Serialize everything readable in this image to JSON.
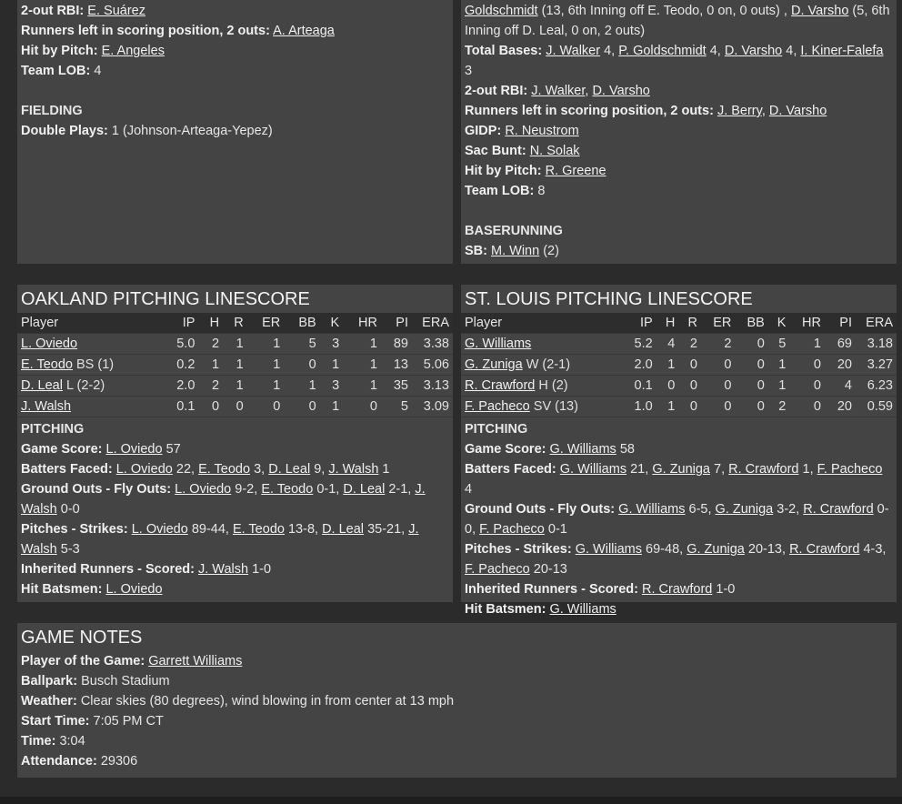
{
  "top_left": {
    "lines": [
      {
        "label": "2-out RBI:",
        "parts": [
          {
            "text": "E. Suárez",
            "link": true
          }
        ]
      },
      {
        "label": "Runners left in scoring position, 2 outs:",
        "parts": [
          {
            "text": "A. Arteaga",
            "link": true
          }
        ]
      },
      {
        "label": "Hit by Pitch:",
        "parts": [
          {
            "text": "E. Angeles",
            "link": true
          }
        ]
      },
      {
        "label": "Team LOB:",
        "parts": [
          {
            "text": "4",
            "link": false
          }
        ]
      },
      {
        "label": "",
        "parts": []
      },
      {
        "section": "FIELDING"
      },
      {
        "label": "Double Plays:",
        "parts": [
          {
            "text": "1 (Johnson-Arteaga-Yepez)",
            "link": false
          }
        ]
      }
    ]
  },
  "top_right": {
    "lines": [
      {
        "label": "",
        "parts": [
          {
            "text": "Goldschmidt",
            "link": true
          },
          {
            "text": "(13, 6th Inning off E. Teodo, 0 on, 0 outs) ,",
            "link": false
          },
          {
            "text": "D. Varsho",
            "link": true
          },
          {
            "text": "(5, 6th Inning off D. Leal, 0 on, 2 outs)",
            "link": false
          }
        ]
      },
      {
        "label": "Total Bases:",
        "parts": [
          {
            "text": "J. Walker",
            "link": true
          },
          {
            "text": "4,",
            "link": false
          },
          {
            "text": "P. Goldschmidt",
            "link": true
          },
          {
            "text": "4,",
            "link": false
          },
          {
            "text": "D. Varsho",
            "link": true
          },
          {
            "text": "4,",
            "link": false
          },
          {
            "text": "I. Kiner-Falefa",
            "link": true
          },
          {
            "text": "3",
            "link": false
          }
        ]
      },
      {
        "label": "2-out RBI:",
        "parts": [
          {
            "text": "J. Walker",
            "link": true
          },
          {
            "text": ",",
            "link": false
          },
          {
            "text": "D. Varsho",
            "link": true
          }
        ]
      },
      {
        "label": "Runners left in scoring position, 2 outs:",
        "parts": [
          {
            "text": "J. Berry",
            "link": true
          },
          {
            "text": ",",
            "link": false
          },
          {
            "text": "D. Varsho",
            "link": true
          }
        ]
      },
      {
        "label": "GIDP:",
        "parts": [
          {
            "text": "R. Neustrom",
            "link": true
          }
        ]
      },
      {
        "label": "Sac Bunt:",
        "parts": [
          {
            "text": "N. Solak",
            "link": true
          }
        ]
      },
      {
        "label": "Hit by Pitch:",
        "parts": [
          {
            "text": "R. Greene",
            "link": true
          }
        ]
      },
      {
        "label": "Team LOB:",
        "parts": [
          {
            "text": "8",
            "link": false
          }
        ]
      },
      {
        "label": "",
        "parts": []
      },
      {
        "section": "BASERUNNING"
      },
      {
        "label": "SB:",
        "parts": [
          {
            "text": "M. Winn",
            "link": true
          },
          {
            "text": "(2)",
            "link": false
          }
        ]
      }
    ]
  },
  "pitching": [
    {
      "title": "OAKLAND PITCHING LINESCORE",
      "columns": [
        "Player",
        "IP",
        "H",
        "R",
        "ER",
        "BB",
        "K",
        "HR",
        "PI",
        "ERA"
      ],
      "rows": [
        {
          "name": "L. Oviedo",
          "note": "",
          "stats": [
            "5.0",
            "2",
            "1",
            "1",
            "5",
            "3",
            "1",
            "89",
            "3.38"
          ]
        },
        {
          "name": "E. Teodo",
          "note": "BS (1)",
          "stats": [
            "0.2",
            "1",
            "1",
            "1",
            "0",
            "1",
            "1",
            "13",
            "5.06"
          ]
        },
        {
          "name": "D. Leal",
          "note": "L (2-2)",
          "stats": [
            "2.0",
            "2",
            "1",
            "1",
            "1",
            "3",
            "1",
            "35",
            "3.13"
          ]
        },
        {
          "name": "J. Walsh",
          "note": "",
          "stats": [
            "0.1",
            "0",
            "0",
            "0",
            "0",
            "1",
            "0",
            "5",
            "3.09"
          ]
        }
      ],
      "lines": [
        {
          "section": "PITCHING"
        },
        {
          "label": "Game Score:",
          "parts": [
            {
              "text": "L. Oviedo",
              "link": true
            },
            {
              "text": "57",
              "link": false
            }
          ]
        },
        {
          "label": "Batters Faced:",
          "parts": [
            {
              "text": "L. Oviedo",
              "link": true
            },
            {
              "text": "22,",
              "link": false
            },
            {
              "text": "E. Teodo",
              "link": true
            },
            {
              "text": "3,",
              "link": false
            },
            {
              "text": "D. Leal",
              "link": true
            },
            {
              "text": "9,",
              "link": false
            },
            {
              "text": "J. Walsh",
              "link": true
            },
            {
              "text": "1",
              "link": false
            }
          ]
        },
        {
          "label": "Ground Outs - Fly Outs:",
          "parts": [
            {
              "text": "L. Oviedo",
              "link": true
            },
            {
              "text": "9-2,",
              "link": false
            },
            {
              "text": "E. Teodo",
              "link": true
            },
            {
              "text": "0-1,",
              "link": false
            },
            {
              "text": "D. Leal",
              "link": true
            },
            {
              "text": "2-1,",
              "link": false
            },
            {
              "text": "J. Walsh",
              "link": true
            },
            {
              "text": "0-0",
              "link": false
            }
          ]
        },
        {
          "label": "Pitches - Strikes:",
          "parts": [
            {
              "text": "L. Oviedo",
              "link": true
            },
            {
              "text": "89-44,",
              "link": false
            },
            {
              "text": "E. Teodo",
              "link": true
            },
            {
              "text": "13-8,",
              "link": false
            },
            {
              "text": "D. Leal",
              "link": true
            },
            {
              "text": "35-21,",
              "link": false
            },
            {
              "text": "J. Walsh",
              "link": true
            },
            {
              "text": "5-3",
              "link": false
            }
          ]
        },
        {
          "label": "Inherited Runners - Scored:",
          "parts": [
            {
              "text": "J. Walsh",
              "link": true
            },
            {
              "text": "1-0",
              "link": false
            }
          ]
        },
        {
          "label": "Hit Batsmen:",
          "parts": [
            {
              "text": "L. Oviedo",
              "link": true
            }
          ]
        }
      ]
    },
    {
      "title": "ST. LOUIS PITCHING LINESCORE",
      "columns": [
        "Player",
        "IP",
        "H",
        "R",
        "ER",
        "BB",
        "K",
        "HR",
        "PI",
        "ERA"
      ],
      "rows": [
        {
          "name": "G. Williams",
          "note": "",
          "stats": [
            "5.2",
            "4",
            "2",
            "2",
            "0",
            "5",
            "1",
            "69",
            "3.18"
          ]
        },
        {
          "name": "G. Zuniga",
          "note": "W (2-1)",
          "stats": [
            "2.0",
            "1",
            "0",
            "0",
            "0",
            "1",
            "0",
            "20",
            "3.27"
          ]
        },
        {
          "name": "R. Crawford",
          "note": "H (2)",
          "stats": [
            "0.1",
            "0",
            "0",
            "0",
            "0",
            "1",
            "0",
            "4",
            "6.23"
          ]
        },
        {
          "name": "F. Pacheco",
          "note": "SV (13)",
          "stats": [
            "1.0",
            "1",
            "0",
            "0",
            "0",
            "2",
            "0",
            "20",
            "0.59"
          ]
        }
      ],
      "lines": [
        {
          "section": "PITCHING"
        },
        {
          "label": "Game Score:",
          "parts": [
            {
              "text": "G. Williams",
              "link": true
            },
            {
              "text": "58",
              "link": false
            }
          ]
        },
        {
          "label": "Batters Faced:",
          "parts": [
            {
              "text": "G. Williams",
              "link": true
            },
            {
              "text": "21,",
              "link": false
            },
            {
              "text": "G. Zuniga",
              "link": true
            },
            {
              "text": "7,",
              "link": false
            },
            {
              "text": "R. Crawford",
              "link": true
            },
            {
              "text": "1,",
              "link": false
            },
            {
              "text": "F. Pacheco",
              "link": true
            },
            {
              "text": "4",
              "link": false
            }
          ]
        },
        {
          "label": "Ground Outs - Fly Outs:",
          "parts": [
            {
              "text": "G. Williams",
              "link": true
            },
            {
              "text": "6-5,",
              "link": false
            },
            {
              "text": "G. Zuniga",
              "link": true
            },
            {
              "text": "3-2,",
              "link": false
            },
            {
              "text": "R. Crawford",
              "link": true
            },
            {
              "text": "0-0,",
              "link": false
            },
            {
              "text": "F. Pacheco",
              "link": true
            },
            {
              "text": "0-1",
              "link": false
            }
          ]
        },
        {
          "label": "Pitches - Strikes:",
          "parts": [
            {
              "text": "G. Williams",
              "link": true
            },
            {
              "text": "69-48,",
              "link": false
            },
            {
              "text": "G. Zuniga",
              "link": true
            },
            {
              "text": "20-13,",
              "link": false
            },
            {
              "text": "R. Crawford",
              "link": true
            },
            {
              "text": "4-3,",
              "link": false
            },
            {
              "text": "F. Pacheco",
              "link": true
            },
            {
              "text": "20-13",
              "link": false
            }
          ]
        },
        {
          "label": "Inherited Runners - Scored:",
          "parts": [
            {
              "text": "R. Crawford",
              "link": true
            },
            {
              "text": "1-0",
              "link": false
            }
          ]
        },
        {
          "label": "Hit Batsmen:",
          "parts": [
            {
              "text": "G. Williams",
              "link": true
            }
          ]
        }
      ]
    }
  ],
  "game_notes": {
    "title": "GAME NOTES",
    "lines": [
      {
        "label": "Player of the Game:",
        "parts": [
          {
            "text": "Garrett Williams",
            "link": true
          }
        ]
      },
      {
        "label": "Ballpark:",
        "parts": [
          {
            "text": "Busch Stadium",
            "link": false
          }
        ]
      },
      {
        "label": "Weather:",
        "parts": [
          {
            "text": "Clear skies (80 degrees), wind blowing in from center at 13 mph",
            "link": false
          }
        ]
      },
      {
        "label": "Start Time:",
        "parts": [
          {
            "text": "7:05 PM CT",
            "link": false
          }
        ]
      },
      {
        "label": "Time:",
        "parts": [
          {
            "text": "3:04",
            "link": false
          }
        ]
      },
      {
        "label": "Attendance:",
        "parts": [
          {
            "text": "29306",
            "link": false
          }
        ]
      }
    ]
  }
}
